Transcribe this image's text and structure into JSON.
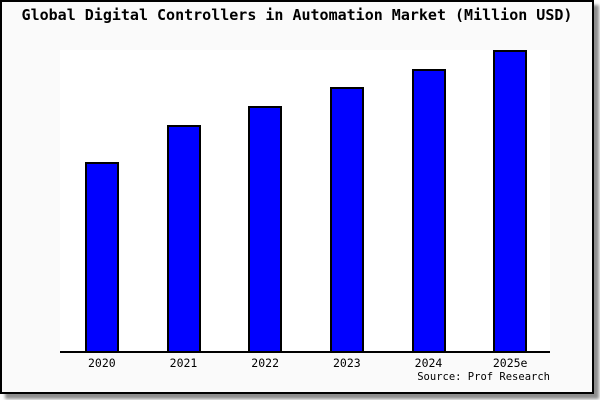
{
  "title": "Global Digital Controllers in Automation Market (Million USD)",
  "source_credit": "Source: Prof Research",
  "colors": {
    "bar_fill": "#0000ff",
    "bar_border": "#000000",
    "card_background": "#fafafa",
    "plot_background": "#ffffff",
    "axis": "#000000",
    "text": "#000000"
  },
  "chart_data": {
    "type": "bar",
    "title": "Global Digital Controllers in Automation Market (Million USD)",
    "categories": [
      "2020",
      "2021",
      "2022",
      "2023",
      "2024",
      "2025e"
    ],
    "values": [
      189,
      226,
      245,
      264,
      282,
      301
    ],
    "values_note": "No y-axis scale, ticks or gridlines are shown in the figure; values are relative bar heights measured in pixels (plot height 301 px = tallest bar, 2025e).",
    "xlabel": "",
    "ylabel": "",
    "ylim": [
      0,
      301
    ],
    "y_axis_visible": false,
    "grid": false,
    "legend": false,
    "annotation": "Source: Prof Research"
  }
}
